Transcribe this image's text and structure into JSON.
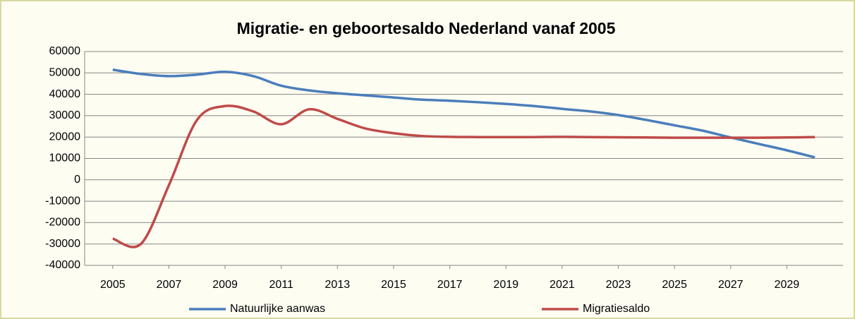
{
  "chart_data": {
    "type": "line",
    "title": "Migratie- en geboortesaldo Nederland vanaf 2005",
    "x": [
      2005,
      2006,
      2007,
      2008,
      2009,
      2010,
      2011,
      2012,
      2013,
      2014,
      2015,
      2016,
      2017,
      2018,
      2019,
      2020,
      2021,
      2022,
      2023,
      2024,
      2025,
      2026,
      2027,
      2028,
      2029,
      2030
    ],
    "series": [
      {
        "name": "Natuurlijke aanwas",
        "color": "#4a7ebb",
        "values": [
          51500,
          49500,
          48500,
          49200,
          50500,
          48500,
          44000,
          41800,
          40500,
          39500,
          38500,
          37500,
          37000,
          36300,
          35500,
          34500,
          33200,
          32000,
          30300,
          28000,
          25500,
          23000,
          19800,
          16800,
          13800,
          10500
        ]
      },
      {
        "name": "Migratiesaldo",
        "color": "#be4b48",
        "values": [
          -27500,
          -30000,
          -2500,
          28000,
          34500,
          32000,
          26000,
          33000,
          28500,
          24000,
          21800,
          20500,
          20100,
          20000,
          20000,
          20000,
          20100,
          20000,
          19900,
          19800,
          19700,
          19700,
          19700,
          19700,
          19800,
          20000
        ]
      }
    ],
    "xlim": [
      2004,
      2031
    ],
    "xticks": [
      2005,
      2007,
      2009,
      2011,
      2013,
      2015,
      2017,
      2019,
      2021,
      2023,
      2025,
      2027,
      2029
    ],
    "ylim": [
      -40000,
      60000
    ],
    "yticks": [
      -40000,
      -30000,
      -20000,
      -10000,
      0,
      10000,
      20000,
      30000,
      40000,
      50000,
      60000
    ],
    "grid": true,
    "legend": "bottom"
  }
}
